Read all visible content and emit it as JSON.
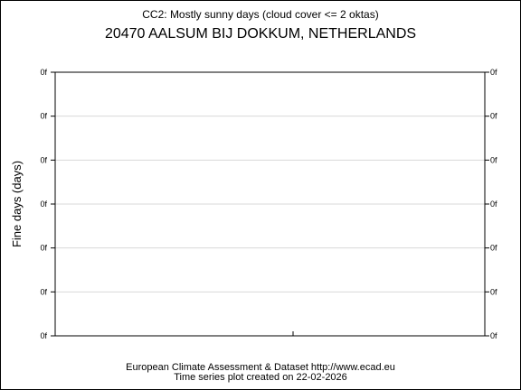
{
  "chart_data": {
    "type": "line",
    "title": "CC2: Mostly sunny days (cloud cover <= 2 oktas)",
    "subtitle": "20470 AALSUM BIJ DOKKUM, NETHERLANDS",
    "ylabel": "Fine days (days)",
    "xlabel": "",
    "yticks": [
      "0f",
      "0f",
      "0f",
      "0f",
      "0f",
      "0f",
      "0f"
    ],
    "series": [],
    "grid": true
  },
  "footer": {
    "line1": "European Climate Assessment & Dataset  http://www.ecad.eu",
    "line2": "Time series plot created on 22-02-2026"
  }
}
